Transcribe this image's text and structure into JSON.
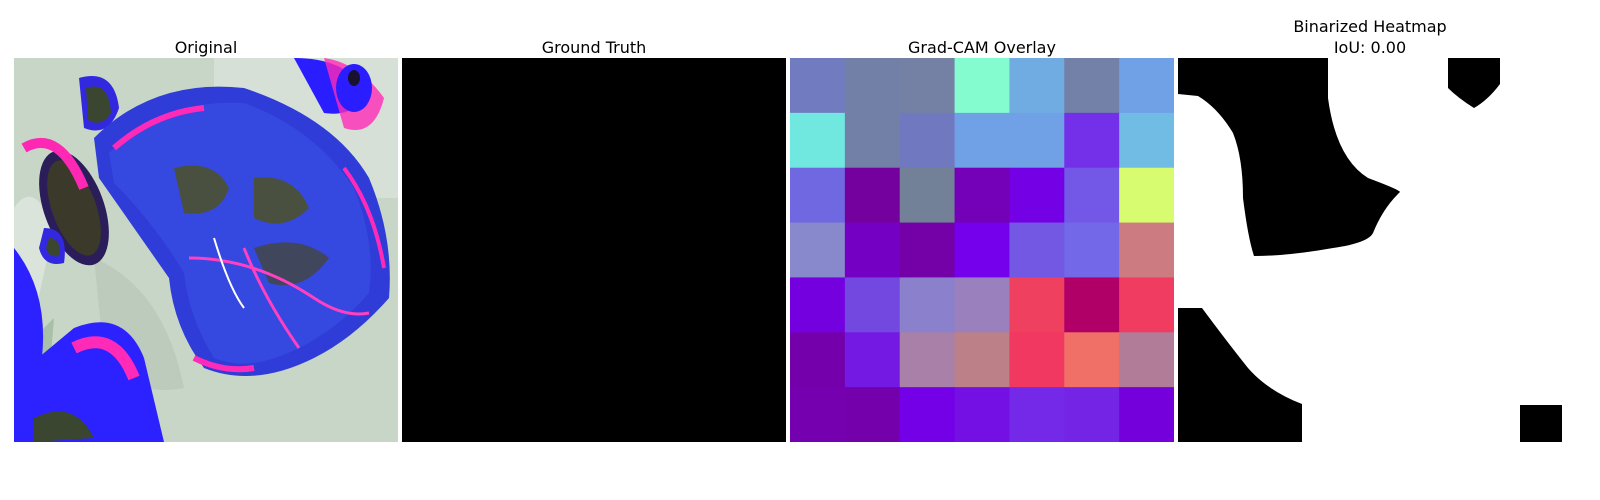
{
  "panels": [
    {
      "title": "Original"
    },
    {
      "title": "Ground Truth"
    },
    {
      "title": "Grad-CAM Overlay"
    },
    {
      "title": "Binarized Heatmap\nIoU: 0.00"
    }
  ],
  "gradcam": {
    "grid": [
      [
        "#717bc0",
        "#7280a8",
        "#7480a4",
        "#84fcd0",
        "#70ace2",
        "#7380a8",
        "#70a0e6"
      ],
      [
        "#70e8e0",
        "#7280a8",
        "#7078c0",
        "#70a0e6",
        "#70a0e6",
        "#7330e8",
        "#70bce4"
      ],
      [
        "#7068e0",
        "#74009e",
        "#728098",
        "#7400b8",
        "#7400e6",
        "#7358e8",
        "#d8fc70"
      ],
      [
        "#8888cc",
        "#7400c4",
        "#7400a8",
        "#7400ec",
        "#7358e4",
        "#7368e8",
        "#cc7c80"
      ],
      [
        "#7400e0",
        "#7348e0",
        "#8a80cc",
        "#9a80bc",
        "#f04060",
        "#b00068",
        "#f03c60"
      ],
      [
        "#7400ac",
        "#7418e4",
        "#a880a8",
        "#bc8088",
        "#f03860",
        "#f07068",
        "#b07c98"
      ],
      [
        "#7400b0",
        "#7400ac",
        "#7400e8",
        "#7410e4",
        "#7428e8",
        "#7424e4",
        "#7400dc"
      ]
    ]
  }
}
